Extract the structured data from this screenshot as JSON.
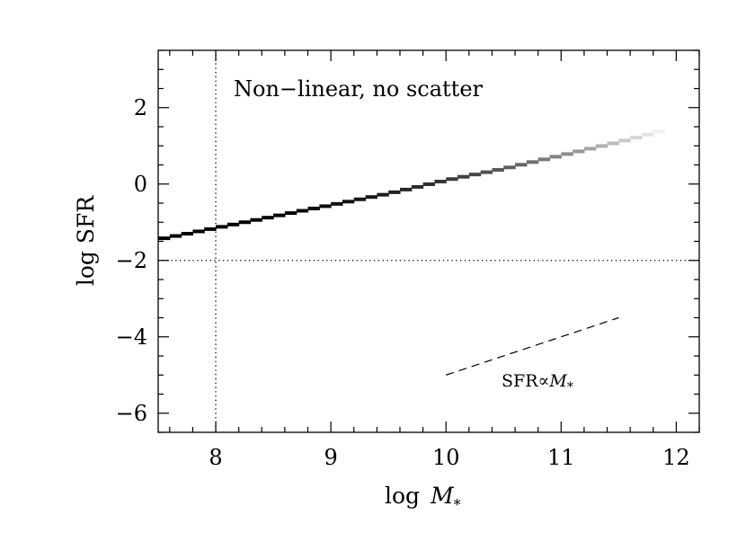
{
  "chart_data": {
    "type": "line",
    "title": "",
    "xlabel": "log",
    "xlabel_symbol": "M",
    "xlabel_subscript": "*",
    "ylabel": "log SFR",
    "xlim": [
      7.5,
      12.2
    ],
    "ylim": [
      -6.5,
      3.5
    ],
    "xticks": [
      8,
      9,
      10,
      11,
      12
    ],
    "xtick_labels": [
      "8",
      "9",
      "10",
      "11",
      "12"
    ],
    "yticks": [
      -6,
      -4,
      -2,
      0,
      2
    ],
    "ytick_labels": [
      "−6",
      "−4",
      "−2",
      "0",
      "2"
    ],
    "x_minor_step": 0.2,
    "y_minor_step": 0.5,
    "grid": false,
    "legend": "none",
    "annotation": "Non−linear, no scatter",
    "series": [
      {
        "style": "stepped-gradient",
        "color_start": "#000000",
        "color_end": "#f2f2f2",
        "x": [
          7.5,
          8.0,
          8.5,
          9.0,
          9.5,
          10.0,
          10.5,
          11.0,
          11.5,
          11.95
        ],
        "y": [
          -1.45,
          -1.15,
          -0.85,
          -0.55,
          -0.25,
          0.1,
          0.4,
          0.75,
          1.1,
          1.45
        ]
      }
    ],
    "reference_lines": [
      {
        "axis": "x",
        "value": 8,
        "style": "dotted"
      },
      {
        "axis": "y",
        "value": -2,
        "style": "dotted"
      }
    ],
    "reference_slope": {
      "x": [
        10.0,
        11.5
      ],
      "y": [
        -5.0,
        -3.5
      ],
      "style": "dashed",
      "label": "SFR∝",
      "label_symbol": "M",
      "label_subscript": "*"
    }
  }
}
